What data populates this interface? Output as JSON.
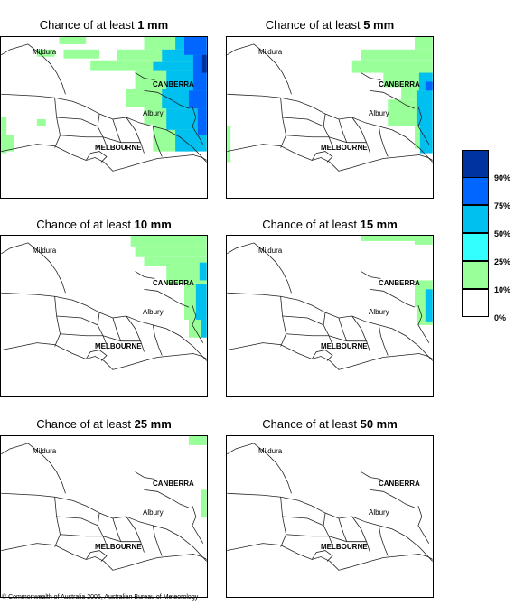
{
  "title_prefix": "Chance of at least",
  "panels": [
    {
      "title_prefix": "Chance of at least",
      "threshold": "1 mm"
    },
    {
      "title_prefix": "Chance of at least",
      "threshold": "5 mm"
    },
    {
      "title_prefix": "Chance of at least",
      "threshold": "10 mm"
    },
    {
      "title_prefix": "Chance of at least",
      "threshold": "15 mm"
    },
    {
      "title_prefix": "Chance of at least",
      "threshold": "25 mm"
    },
    {
      "title_prefix": "Chance of at least",
      "threshold": "50 mm"
    }
  ],
  "places": {
    "mildura": "Mildura",
    "canberra": "CANBERRA",
    "albury": "Albury",
    "melbourne": "MELBOURNE"
  },
  "legend": {
    "labels": [
      "90%",
      "75%",
      "50%",
      "25%",
      "10%",
      "0%"
    ],
    "colors": [
      "#0033a0",
      "#0066ff",
      "#00c0f0",
      "#33ffff",
      "#99ff99",
      "#ffffff"
    ]
  },
  "copyright": "© Commonwealth of Australia 2006, Australian Bureau of Meteorology"
}
